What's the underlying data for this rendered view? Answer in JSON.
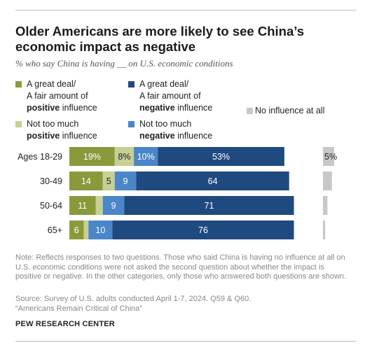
{
  "header": {
    "title_line1": "Older Americans are more likely to see China’s",
    "title_line2": "economic impact as negative",
    "subtitle": "% who say China is having __ on U.S. economic conditions"
  },
  "legend": {
    "great_positive": {
      "line1": "A great deal/",
      "line2": "A fair amount of",
      "bold": "positive",
      "rest": " influence"
    },
    "great_negative": {
      "line1": "A great deal/",
      "line2": "A fair amount of",
      "bold": "negative",
      "rest": " influence"
    },
    "not_positive": {
      "line1": "Not too much",
      "bold": "positive",
      "rest": " influence"
    },
    "not_negative": {
      "line1": "Not too much",
      "bold": "negative",
      "rest": " influence"
    },
    "no_influence": "No influence at all"
  },
  "colors": {
    "great_positive": "#8a9a3b",
    "not_positive": "#c7cf94",
    "not_negative": "#4a86c8",
    "great_negative": "#1f4a7f",
    "no_influence": "#c8c8c8"
  },
  "chart_data": {
    "type": "bar",
    "stacked": true,
    "orientation": "horizontal",
    "categories": [
      "Ages 18-29",
      "30-49",
      "50-64",
      "65+"
    ],
    "series": [
      {
        "name": "A great deal/A fair amount of positive influence",
        "values": [
          19,
          14,
          11,
          6
        ],
        "labels": [
          "19%",
          "14",
          "11",
          "6"
        ]
      },
      {
        "name": "Not too much positive influence",
        "values": [
          8,
          5,
          3,
          2
        ],
        "labels": [
          "8%",
          "5",
          "",
          ""
        ]
      },
      {
        "name": "Not too much negative influence",
        "values": [
          10,
          9,
          9,
          10
        ],
        "labels": [
          "10%",
          "9",
          "9",
          "10"
        ]
      },
      {
        "name": "A great deal/A fair amount of negative influence",
        "values": [
          53,
          64,
          71,
          76
        ],
        "labels": [
          "53%",
          "64",
          "71",
          "76"
        ]
      },
      {
        "name": "No influence at all",
        "values": [
          5,
          4,
          2,
          1
        ],
        "labels": [
          "5%",
          "",
          "",
          ""
        ]
      }
    ]
  },
  "footer": {
    "note": "Note: Reflects responses to two questions. Those who said China is having no influence at all on U.S. economic conditions were not asked the second question about whether the impact is positive or negative. In the other categories, only those who answered both questions are shown.",
    "source_line1": "Source: Survey of U.S. adults conducted April 1-7, 2024. Q59 & Q60.",
    "source_line2": "“Americans Remain Critical of China”",
    "brand": "PEW RESEARCH CENTER"
  }
}
